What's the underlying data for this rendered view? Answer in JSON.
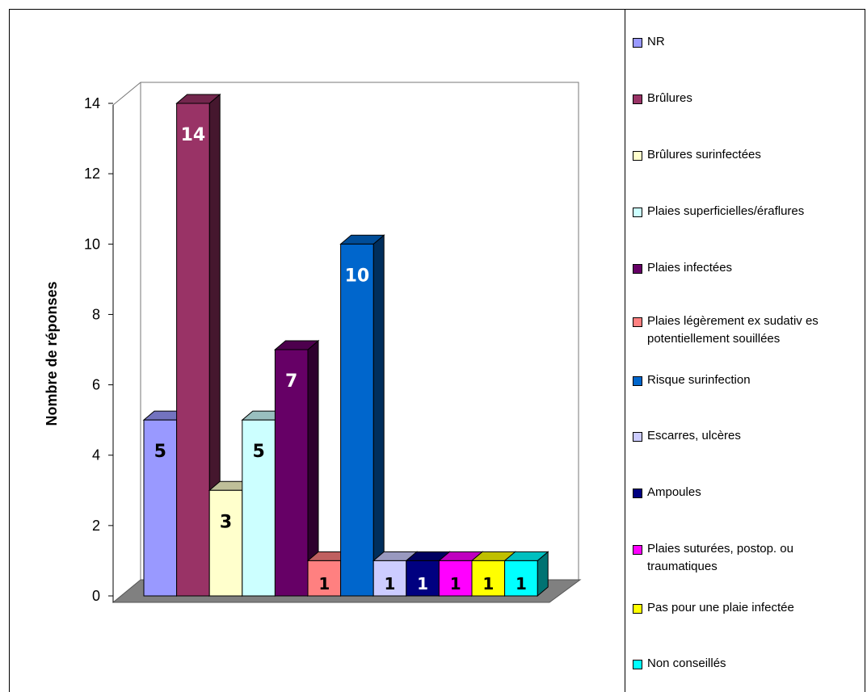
{
  "chart_data": {
    "type": "bar",
    "ylabel": "Nombre de réponses",
    "xlabel": "",
    "ylim": [
      0,
      14
    ],
    "yticks": [
      "0",
      "2",
      "4",
      "6",
      "8",
      "10",
      "12",
      "14"
    ],
    "grid": false,
    "legend_position": "right",
    "series": [
      {
        "name": "NR",
        "value": 5,
        "color": "#9999ff",
        "label_color": "#000000"
      },
      {
        "name": "Brûlures",
        "value": 14,
        "color": "#993366",
        "label_color": "#ffffff"
      },
      {
        "name": "Brûlures surinfectées",
        "value": 3,
        "color": "#ffffcc",
        "label_color": "#000000"
      },
      {
        "name": "Plaies superficielles/éraflures",
        "value": 5,
        "color": "#ccffff",
        "label_color": "#000000"
      },
      {
        "name": "Plaies infectées",
        "value": 7,
        "color": "#660066",
        "label_color": "#ffffff"
      },
      {
        "name": "Plaies légèrement ex sudativ es potentiellement souillées",
        "value": 1,
        "color": "#ff8080",
        "label_color": "#000000"
      },
      {
        "name": "Risque surinfection",
        "value": 10,
        "color": "#0066cc",
        "label_color": "#ffffff"
      },
      {
        "name": "Escarres, ulcères",
        "value": 1,
        "color": "#ccccff",
        "label_color": "#000000"
      },
      {
        "name": "Ampoules",
        "value": 1,
        "color": "#000080",
        "label_color": "#ffffff"
      },
      {
        "name": "Plaies suturées, postop. ou traumatiques",
        "value": 1,
        "color": "#ff00ff",
        "label_color": "#000000"
      },
      {
        "name": "Pas pour une plaie infectée",
        "value": 1,
        "color": "#ffff00",
        "label_color": "#000000"
      },
      {
        "name": "Non conseillés",
        "value": 1,
        "color": "#00ffff",
        "label_color": "#000000"
      }
    ]
  }
}
